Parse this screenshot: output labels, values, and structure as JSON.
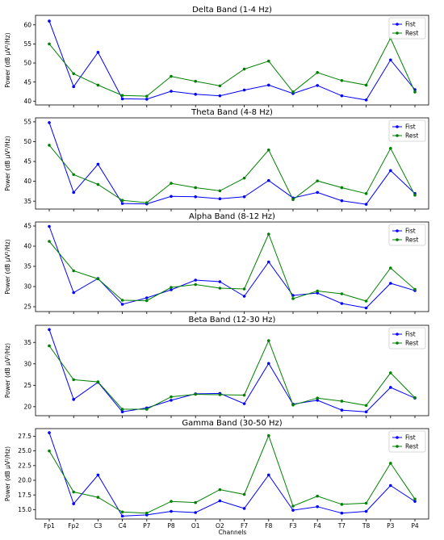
{
  "figure": {
    "xlabel": "Channels"
  },
  "colors": {
    "fist": "#0000ff",
    "rest": "#008000",
    "axes": "#000000",
    "legend_border": "#cccccc"
  },
  "chart_data": [
    {
      "type": "line",
      "title": "Delta Band (1-4 Hz)",
      "xlabel": "",
      "ylabel": "Power (dB μV²/Hz)",
      "ylim": [
        39.0,
        62.5
      ],
      "yticks": [
        40,
        45,
        50,
        55,
        60
      ],
      "legend": "top-right",
      "grid": false,
      "categories": [
        "Fp1",
        "Fp2",
        "C3",
        "C4",
        "P7",
        "P8",
        "O1",
        "O2",
        "F7",
        "F8",
        "F3",
        "F4",
        "T7",
        "T8",
        "P3",
        "P4"
      ],
      "series": [
        {
          "name": "Fist",
          "color": "#0000ff",
          "values": [
            61.0,
            43.8,
            52.8,
            40.6,
            40.5,
            42.6,
            41.8,
            41.4,
            42.9,
            44.2,
            42.0,
            44.1,
            41.4,
            40.3,
            50.8,
            43.0
          ]
        },
        {
          "name": "Rest",
          "color": "#008000",
          "values": [
            55.0,
            47.2,
            44.2,
            41.5,
            41.3,
            46.5,
            45.2,
            44.0,
            48.4,
            50.5,
            42.4,
            47.5,
            45.4,
            44.2,
            56.5,
            42.4
          ]
        }
      ]
    },
    {
      "type": "line",
      "title": "Theta Band (4-8 Hz)",
      "xlabel": "",
      "ylabel": "Power (dB μV²/Hz)",
      "ylim": [
        33.0,
        56.0
      ],
      "yticks": [
        35,
        40,
        45,
        50,
        55
      ],
      "legend": "top-right",
      "grid": false,
      "categories": [
        "Fp1",
        "Fp2",
        "C3",
        "C4",
        "P7",
        "P8",
        "O1",
        "O2",
        "F7",
        "F8",
        "F3",
        "F4",
        "T7",
        "T8",
        "P3",
        "P4"
      ],
      "series": [
        {
          "name": "Fist",
          "color": "#0000ff",
          "values": [
            54.8,
            37.2,
            44.3,
            34.4,
            34.3,
            36.2,
            36.1,
            35.6,
            36.1,
            40.2,
            35.8,
            37.2,
            35.1,
            34.2,
            42.7,
            36.9
          ]
        },
        {
          "name": "Rest",
          "color": "#008000",
          "values": [
            49.1,
            41.7,
            39.2,
            35.2,
            34.6,
            39.5,
            38.4,
            37.6,
            40.8,
            47.9,
            35.4,
            40.1,
            38.4,
            36.9,
            48.3,
            36.5
          ]
        }
      ]
    },
    {
      "type": "line",
      "title": "Alpha Band (8-12 Hz)",
      "xlabel": "",
      "ylabel": "Power (dB μV²/Hz)",
      "ylim": [
        23.8,
        46.0
      ],
      "yticks": [
        25,
        30,
        35,
        40,
        45
      ],
      "legend": "top-right",
      "grid": false,
      "categories": [
        "Fp1",
        "Fp2",
        "C3",
        "C4",
        "P7",
        "P8",
        "O1",
        "O2",
        "F7",
        "F8",
        "F3",
        "F4",
        "T7",
        "T8",
        "P3",
        "P4"
      ],
      "series": [
        {
          "name": "Fist",
          "color": "#0000ff",
          "values": [
            44.9,
            28.5,
            32.0,
            25.6,
            27.2,
            29.2,
            31.6,
            31.2,
            27.6,
            36.1,
            27.8,
            28.4,
            25.8,
            24.7,
            30.8,
            29.0
          ]
        },
        {
          "name": "Rest",
          "color": "#008000",
          "values": [
            41.2,
            33.9,
            31.9,
            26.6,
            26.5,
            29.8,
            30.5,
            29.6,
            29.4,
            43.0,
            27.0,
            28.9,
            28.2,
            26.4,
            34.6,
            29.3
          ]
        }
      ]
    },
    {
      "type": "line",
      "title": "Beta Band (12-30 Hz)",
      "xlabel": "",
      "ylabel": "Power (dB μV²/Hz)",
      "ylim": [
        17.9,
        39.0
      ],
      "yticks": [
        20,
        25,
        30,
        35
      ],
      "legend": "top-right",
      "grid": false,
      "categories": [
        "Fp1",
        "Fp2",
        "C3",
        "C4",
        "P7",
        "P8",
        "O1",
        "O2",
        "F7",
        "F8",
        "F3",
        "F4",
        "T7",
        "T8",
        "P3",
        "P4"
      ],
      "series": [
        {
          "name": "Fist",
          "color": "#0000ff",
          "values": [
            38.0,
            21.7,
            25.7,
            18.8,
            19.7,
            21.5,
            23.0,
            23.1,
            20.7,
            30.1,
            20.6,
            21.5,
            19.2,
            18.8,
            24.5,
            22.0
          ]
        },
        {
          "name": "Rest",
          "color": "#008000",
          "values": [
            34.2,
            26.3,
            25.8,
            19.4,
            19.4,
            22.3,
            22.9,
            22.8,
            22.7,
            35.4,
            20.4,
            22.0,
            21.3,
            20.3,
            27.9,
            22.1
          ]
        }
      ]
    },
    {
      "type": "line",
      "title": "Gamma Band (30-50 Hz)",
      "xlabel": "",
      "ylabel": "Power (dB μV²/Hz)",
      "ylim": [
        13.4,
        28.8
      ],
      "yticks": [
        15.0,
        17.5,
        20.0,
        22.5,
        25.0,
        27.5
      ],
      "legend": "top-right",
      "grid": false,
      "categories": [
        "Fp1",
        "Fp2",
        "C3",
        "C4",
        "P7",
        "P8",
        "O1",
        "O2",
        "F7",
        "F8",
        "F3",
        "F4",
        "T7",
        "T8",
        "P3",
        "P4"
      ],
      "series": [
        {
          "name": "Fist",
          "color": "#0000ff",
          "values": [
            28.1,
            16.0,
            20.9,
            13.9,
            14.1,
            14.7,
            14.5,
            16.5,
            15.2,
            20.9,
            14.9,
            15.5,
            14.4,
            14.7,
            19.1,
            16.4
          ]
        },
        {
          "name": "Rest",
          "color": "#008000",
          "values": [
            25.0,
            18.0,
            17.1,
            14.6,
            14.4,
            16.4,
            16.2,
            18.4,
            17.6,
            27.6,
            15.6,
            17.3,
            15.9,
            16.1,
            22.9,
            16.8
          ]
        }
      ]
    }
  ]
}
